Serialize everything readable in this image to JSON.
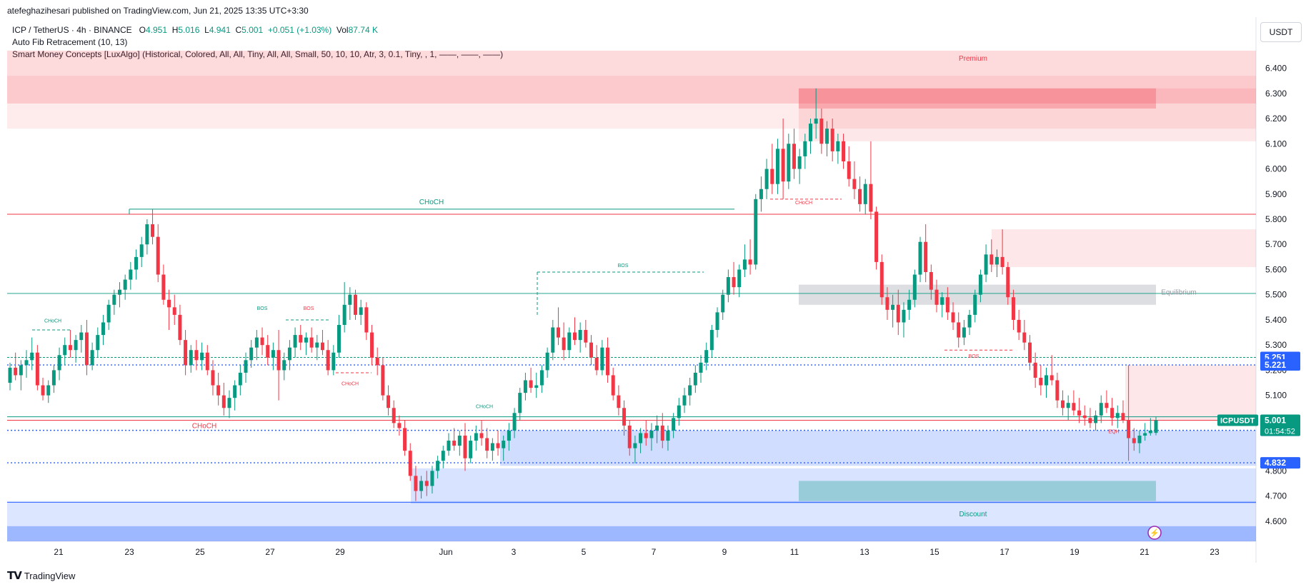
{
  "header": {
    "author_line": "atefeghazihesari published on TradingView.com, Jun 21, 2025 13:35 UTC+3:30"
  },
  "legend": {
    "symbol": "ICP / TetherUS · 4h · BINANCE",
    "o_label": "O",
    "o_value": "4.951",
    "h_label": "H",
    "h_value": "5.016",
    "l_label": "L",
    "l_value": "4.941",
    "c_label": "C",
    "c_value": "5.001",
    "change": "+0.051 (+1.03%)",
    "vol_label": "Vol",
    "vol_value": "87.74 K",
    "indicator1": "Auto Fib Retracement (10, 13)",
    "indicator2": "Smart Money Concepts [LuxAlgo] (Historical, Colored, All, All, Tiny, All, All, Small, 50, 10, 10, Atr, 3, 0.1, Tiny, , 1, ——, ——, ——)"
  },
  "currency_button": "USDT",
  "footer": {
    "brand": "TradingView"
  },
  "colors": {
    "up": "#089981",
    "down": "#f23645",
    "blue_zone": "#2962ff",
    "premium": "#f23645"
  },
  "chart_data": {
    "type": "candlestick",
    "symbol": "ICPUSDT",
    "timeframe": "4h",
    "ylim": [
      4.52,
      6.45
    ],
    "yticks": [
      "6.400",
      "6.300",
      "6.200",
      "6.100",
      "6.000",
      "5.900",
      "5.800",
      "5.700",
      "5.600",
      "5.500",
      "5.400",
      "5.300",
      "5.200",
      "5.100",
      "4.800",
      "4.700",
      "4.600"
    ],
    "xticks": [
      "21",
      "23",
      "25",
      "27",
      "29",
      "Jun",
      "3",
      "5",
      "7",
      "9",
      "11",
      "13",
      "15",
      "17",
      "19",
      "21",
      "23"
    ],
    "price_labels": [
      {
        "text": "5.251",
        "value": 5.251,
        "color": "#2962ff"
      },
      {
        "text": "5.221",
        "value": 5.221,
        "color": "#2962ff"
      },
      {
        "text": "4.961",
        "value": 4.961,
        "color": "#2962ff"
      },
      {
        "text": "4.832",
        "value": 4.832,
        "color": "#2962ff"
      },
      {
        "text": "5.001",
        "value": 5.001,
        "color": "#089981"
      }
    ],
    "current_price_tag": {
      "symbol": "ICPUSDT",
      "price": "5.001",
      "countdown": "01:54:52"
    },
    "annotations": [
      {
        "text": "Premium",
        "color": "#f23645"
      },
      {
        "text": "Equilibrium",
        "color": "#9598a1"
      },
      {
        "text": "Discount",
        "color": "#089981"
      },
      {
        "text": "CHoCH",
        "color": "#089981"
      },
      {
        "text": "CHoCH",
        "color": "#f23645"
      },
      {
        "text": "CHoCH",
        "color": "#f23645"
      },
      {
        "text": "CHoCH",
        "color": "#089981"
      },
      {
        "text": "CHoCH",
        "color": "#f23645"
      },
      {
        "text": "CHoCH",
        "color": "#089981"
      },
      {
        "text": "BOS",
        "color": "#089981"
      },
      {
        "text": "BOS",
        "color": "#089981"
      },
      {
        "text": "BOS",
        "color": "#f23645"
      },
      {
        "text": "BOS",
        "color": "#f23645"
      },
      {
        "text": "EQH",
        "color": "#f23645"
      }
    ],
    "candles": [
      [
        5.15,
        5.23,
        5.12,
        5.21
      ],
      [
        5.21,
        5.27,
        5.16,
        5.18
      ],
      [
        5.18,
        5.24,
        5.12,
        5.22
      ],
      [
        5.22,
        5.28,
        5.17,
        5.24
      ],
      [
        5.24,
        5.33,
        5.2,
        5.27
      ],
      [
        5.27,
        5.3,
        5.12,
        5.14
      ],
      [
        5.14,
        5.17,
        5.08,
        5.1
      ],
      [
        5.1,
        5.16,
        5.07,
        5.14
      ],
      [
        5.14,
        5.22,
        5.11,
        5.2
      ],
      [
        5.2,
        5.29,
        5.16,
        5.26
      ],
      [
        5.26,
        5.33,
        5.22,
        5.3
      ],
      [
        5.3,
        5.36,
        5.25,
        5.28
      ],
      [
        5.28,
        5.34,
        5.23,
        5.32
      ],
      [
        5.32,
        5.38,
        5.27,
        5.35
      ],
      [
        5.35,
        5.4,
        5.18,
        5.22
      ],
      [
        5.22,
        5.31,
        5.2,
        5.28
      ],
      [
        5.28,
        5.37,
        5.25,
        5.34
      ],
      [
        5.34,
        5.42,
        5.3,
        5.39
      ],
      [
        5.39,
        5.48,
        5.36,
        5.46
      ],
      [
        5.46,
        5.52,
        5.42,
        5.5
      ],
      [
        5.5,
        5.55,
        5.45,
        5.52
      ],
      [
        5.52,
        5.58,
        5.48,
        5.56
      ],
      [
        5.56,
        5.63,
        5.52,
        5.6
      ],
      [
        5.6,
        5.68,
        5.56,
        5.65
      ],
      [
        5.65,
        5.73,
        5.61,
        5.7
      ],
      [
        5.7,
        5.8,
        5.66,
        5.78
      ],
      [
        5.78,
        5.84,
        5.7,
        5.73
      ],
      [
        5.73,
        5.78,
        5.55,
        5.58
      ],
      [
        5.58,
        5.62,
        5.46,
        5.48
      ],
      [
        5.48,
        5.52,
        5.36,
        5.45
      ],
      [
        5.45,
        5.5,
        5.38,
        5.42
      ],
      [
        5.42,
        5.46,
        5.3,
        5.32
      ],
      [
        5.32,
        5.36,
        5.18,
        5.22
      ],
      [
        5.22,
        5.3,
        5.19,
        5.28
      ],
      [
        5.28,
        5.32,
        5.2,
        5.24
      ],
      [
        5.24,
        5.31,
        5.2,
        5.27
      ],
      [
        5.27,
        5.3,
        5.18,
        5.2
      ],
      [
        5.2,
        5.24,
        5.1,
        5.14
      ],
      [
        5.14,
        5.19,
        5.06,
        5.1
      ],
      [
        5.1,
        5.15,
        5.02,
        5.05
      ],
      [
        5.05,
        5.12,
        5.01,
        5.09
      ],
      [
        5.09,
        5.16,
        5.04,
        5.14
      ],
      [
        5.14,
        5.22,
        5.1,
        5.19
      ],
      [
        5.19,
        5.27,
        5.15,
        5.24
      ],
      [
        5.24,
        5.32,
        5.21,
        5.29
      ],
      [
        5.29,
        5.36,
        5.24,
        5.33
      ],
      [
        5.33,
        5.37,
        5.26,
        5.3
      ],
      [
        5.3,
        5.34,
        5.22,
        5.25
      ],
      [
        5.25,
        5.31,
        5.2,
        5.28
      ],
      [
        5.28,
        5.36,
        5.08,
        5.2
      ],
      [
        5.2,
        5.27,
        5.16,
        5.24
      ],
      [
        5.24,
        5.32,
        5.2,
        5.29
      ],
      [
        5.29,
        5.37,
        5.25,
        5.34
      ],
      [
        5.34,
        5.38,
        5.28,
        5.31
      ],
      [
        5.31,
        5.35,
        5.26,
        5.33
      ],
      [
        5.33,
        5.37,
        5.27,
        5.29
      ],
      [
        5.29,
        5.34,
        5.24,
        5.31
      ],
      [
        5.31,
        5.36,
        5.26,
        5.28
      ],
      [
        5.28,
        5.32,
        5.18,
        5.2
      ],
      [
        5.2,
        5.3,
        5.18,
        5.27
      ],
      [
        5.27,
        5.42,
        5.25,
        5.38
      ],
      [
        5.38,
        5.55,
        5.35,
        5.46
      ],
      [
        5.46,
        5.53,
        5.4,
        5.5
      ],
      [
        5.5,
        5.52,
        5.4,
        5.42
      ],
      [
        5.42,
        5.48,
        5.38,
        5.45
      ],
      [
        5.45,
        5.47,
        5.32,
        5.35
      ],
      [
        5.35,
        5.38,
        5.22,
        5.25
      ],
      [
        5.25,
        5.29,
        5.18,
        5.22
      ],
      [
        5.22,
        5.25,
        5.08,
        5.1
      ],
      [
        5.1,
        5.14,
        5.02,
        5.05
      ],
      [
        5.05,
        5.08,
        4.97,
        4.99
      ],
      [
        4.99,
        5.02,
        4.94,
        4.97
      ],
      [
        4.97,
        5.0,
        4.86,
        4.88
      ],
      [
        4.88,
        4.91,
        4.76,
        4.78
      ],
      [
        4.78,
        4.82,
        4.68,
        4.72
      ],
      [
        4.72,
        4.78,
        4.69,
        4.76
      ],
      [
        4.76,
        4.8,
        4.7,
        4.74
      ],
      [
        4.74,
        4.82,
        4.71,
        4.8
      ],
      [
        4.8,
        4.86,
        4.77,
        4.84
      ],
      [
        4.84,
        4.9,
        4.81,
        4.88
      ],
      [
        4.88,
        4.95,
        4.86,
        4.92
      ],
      [
        4.92,
        4.97,
        4.88,
        4.9
      ],
      [
        4.9,
        4.96,
        4.86,
        4.94
      ],
      [
        4.94,
        4.99,
        4.8,
        4.85
      ],
      [
        4.85,
        4.94,
        4.83,
        4.92
      ],
      [
        4.92,
        4.98,
        4.88,
        4.95
      ],
      [
        4.95,
        5.0,
        4.9,
        4.93
      ],
      [
        4.93,
        4.97,
        4.85,
        4.88
      ],
      [
        4.88,
        4.93,
        4.84,
        4.91
      ],
      [
        4.91,
        4.96,
        4.86,
        4.89
      ],
      [
        4.89,
        4.94,
        4.84,
        4.92
      ],
      [
        4.92,
        4.99,
        4.88,
        4.96
      ],
      [
        4.96,
        5.05,
        4.93,
        5.03
      ],
      [
        5.03,
        5.13,
        5.0,
        5.11
      ],
      [
        5.11,
        5.19,
        5.08,
        5.16
      ],
      [
        5.16,
        5.21,
        5.11,
        5.13
      ],
      [
        5.13,
        5.19,
        5.09,
        5.14
      ],
      [
        5.14,
        5.22,
        5.11,
        5.2
      ],
      [
        5.2,
        5.29,
        5.17,
        5.27
      ],
      [
        5.27,
        5.4,
        5.24,
        5.37
      ],
      [
        5.37,
        5.45,
        5.3,
        5.33
      ],
      [
        5.33,
        5.39,
        5.24,
        5.28
      ],
      [
        5.28,
        5.37,
        5.25,
        5.35
      ],
      [
        5.35,
        5.41,
        5.3,
        5.32
      ],
      [
        5.32,
        5.39,
        5.27,
        5.36
      ],
      [
        5.36,
        5.4,
        5.29,
        5.31
      ],
      [
        5.31,
        5.34,
        5.22,
        5.25
      ],
      [
        5.25,
        5.3,
        5.18,
        5.2
      ],
      [
        5.2,
        5.32,
        5.18,
        5.29
      ],
      [
        5.29,
        5.33,
        5.15,
        5.18
      ],
      [
        5.18,
        5.21,
        5.08,
        5.1
      ],
      [
        5.1,
        5.14,
        5.02,
        5.05
      ],
      [
        5.05,
        5.08,
        4.94,
        4.98
      ],
      [
        4.98,
        5.0,
        4.86,
        4.89
      ],
      [
        4.89,
        4.94,
        4.83,
        4.91
      ],
      [
        4.91,
        4.97,
        4.87,
        4.95
      ],
      [
        4.95,
        5.0,
        4.9,
        4.93
      ],
      [
        4.93,
        4.99,
        4.88,
        4.96
      ],
      [
        4.96,
        5.02,
        4.91,
        4.98
      ],
      [
        4.98,
        5.03,
        4.89,
        4.92
      ],
      [
        4.92,
        4.98,
        4.88,
        4.96
      ],
      [
        4.96,
        5.03,
        4.93,
        5.01
      ],
      [
        5.01,
        5.09,
        4.98,
        5.06
      ],
      [
        5.06,
        5.13,
        5.03,
        5.1
      ],
      [
        5.1,
        5.17,
        5.06,
        5.14
      ],
      [
        5.14,
        5.22,
        5.11,
        5.19
      ],
      [
        5.19,
        5.26,
        5.15,
        5.23
      ],
      [
        5.23,
        5.31,
        5.2,
        5.28
      ],
      [
        5.28,
        5.38,
        5.25,
        5.36
      ],
      [
        5.36,
        5.45,
        5.33,
        5.43
      ],
      [
        5.43,
        5.52,
        5.4,
        5.5
      ],
      [
        5.5,
        5.6,
        5.47,
        5.57
      ],
      [
        5.57,
        5.63,
        5.5,
        5.53
      ],
      [
        5.53,
        5.62,
        5.49,
        5.6
      ],
      [
        5.6,
        5.7,
        5.57,
        5.64
      ],
      [
        5.64,
        5.72,
        5.58,
        5.62
      ],
      [
        5.62,
        5.9,
        5.6,
        5.88
      ],
      [
        5.88,
        5.97,
        5.83,
        5.92
      ],
      [
        5.92,
        6.04,
        5.88,
        6.0
      ],
      [
        6.0,
        6.1,
        5.9,
        5.94
      ],
      [
        5.94,
        6.12,
        5.9,
        6.08
      ],
      [
        6.08,
        6.2,
        5.88,
        5.95
      ],
      [
        5.95,
        6.14,
        5.92,
        6.1
      ],
      [
        6.1,
        6.16,
        5.96,
        6.0
      ],
      [
        6.0,
        6.08,
        5.94,
        6.05
      ],
      [
        6.05,
        6.14,
        6.0,
        6.11
      ],
      [
        6.11,
        6.2,
        6.06,
        6.18
      ],
      [
        6.18,
        6.32,
        6.12,
        6.2
      ],
      [
        6.2,
        6.24,
        6.06,
        6.1
      ],
      [
        6.1,
        6.19,
        6.05,
        6.16
      ],
      [
        6.16,
        6.2,
        6.03,
        6.07
      ],
      [
        6.07,
        6.14,
        6.02,
        6.11
      ],
      [
        6.11,
        6.14,
        6.0,
        6.03
      ],
      [
        6.03,
        6.09,
        5.93,
        5.96
      ],
      [
        5.96,
        6.03,
        5.88,
        5.92
      ],
      [
        5.92,
        5.97,
        5.83,
        5.86
      ],
      [
        5.86,
        5.96,
        5.82,
        5.94
      ],
      [
        5.94,
        6.11,
        5.8,
        5.83
      ],
      [
        5.83,
        5.85,
        5.6,
        5.63
      ],
      [
        5.63,
        5.66,
        5.46,
        5.49
      ],
      [
        5.49,
        5.53,
        5.4,
        5.44
      ],
      [
        5.44,
        5.5,
        5.37,
        5.46
      ],
      [
        5.46,
        5.52,
        5.34,
        5.39
      ],
      [
        5.39,
        5.47,
        5.33,
        5.44
      ],
      [
        5.44,
        5.52,
        5.4,
        5.48
      ],
      [
        5.48,
        5.6,
        5.45,
        5.58
      ],
      [
        5.58,
        5.73,
        5.55,
        5.71
      ],
      [
        5.71,
        5.78,
        5.55,
        5.59
      ],
      [
        5.59,
        5.62,
        5.48,
        5.52
      ],
      [
        5.52,
        5.56,
        5.43,
        5.46
      ],
      [
        5.46,
        5.51,
        5.41,
        5.49
      ],
      [
        5.49,
        5.53,
        5.4,
        5.43
      ],
      [
        5.43,
        5.47,
        5.36,
        5.39
      ],
      [
        5.39,
        5.43,
        5.29,
        5.33
      ],
      [
        5.33,
        5.4,
        5.3,
        5.37
      ],
      [
        5.37,
        5.44,
        5.34,
        5.42
      ],
      [
        5.42,
        5.52,
        5.39,
        5.5
      ],
      [
        5.5,
        5.6,
        5.47,
        5.58
      ],
      [
        5.58,
        5.7,
        5.55,
        5.66
      ],
      [
        5.66,
        5.72,
        5.59,
        5.62
      ],
      [
        5.62,
        5.68,
        5.57,
        5.65
      ],
      [
        5.65,
        5.76,
        5.58,
        5.61
      ],
      [
        5.61,
        5.63,
        5.46,
        5.49
      ],
      [
        5.49,
        5.52,
        5.36,
        5.4
      ],
      [
        5.4,
        5.44,
        5.32,
        5.35
      ],
      [
        5.35,
        5.4,
        5.28,
        5.31
      ],
      [
        5.31,
        5.34,
        5.2,
        5.23
      ],
      [
        5.23,
        5.27,
        5.13,
        5.17
      ],
      [
        5.17,
        5.22,
        5.1,
        5.14
      ],
      [
        5.14,
        5.21,
        5.09,
        5.18
      ],
      [
        5.18,
        5.26,
        5.14,
        5.16
      ],
      [
        5.16,
        5.19,
        5.05,
        5.08
      ],
      [
        5.08,
        5.12,
        5.02,
        5.05
      ],
      [
        5.05,
        5.1,
        5.0,
        5.07
      ],
      [
        5.07,
        5.12,
        5.02,
        5.04
      ],
      [
        5.04,
        5.09,
        4.99,
        5.02
      ],
      [
        5.02,
        5.06,
        4.98,
        5.01
      ],
      [
        5.01,
        5.05,
        4.97,
        4.99
      ],
      [
        4.99,
        5.04,
        4.96,
        5.02
      ],
      [
        5.02,
        5.1,
        4.99,
        5.07
      ],
      [
        5.07,
        5.12,
        5.03,
        5.05
      ],
      [
        5.05,
        5.09,
        4.98,
        5.01
      ],
      [
        5.01,
        5.06,
        4.97,
        5.03
      ],
      [
        5.03,
        5.08,
        4.99,
        5.0
      ],
      [
        5.0,
        5.22,
        4.84,
        4.93
      ],
      [
        4.93,
        4.97,
        4.88,
        4.91
      ],
      [
        4.91,
        4.96,
        4.87,
        4.94
      ],
      [
        4.94,
        4.99,
        4.92,
        4.95
      ],
      [
        4.95,
        5.01,
        4.94,
        4.96
      ],
      [
        4.951,
        5.016,
        4.941,
        5.001
      ]
    ]
  }
}
